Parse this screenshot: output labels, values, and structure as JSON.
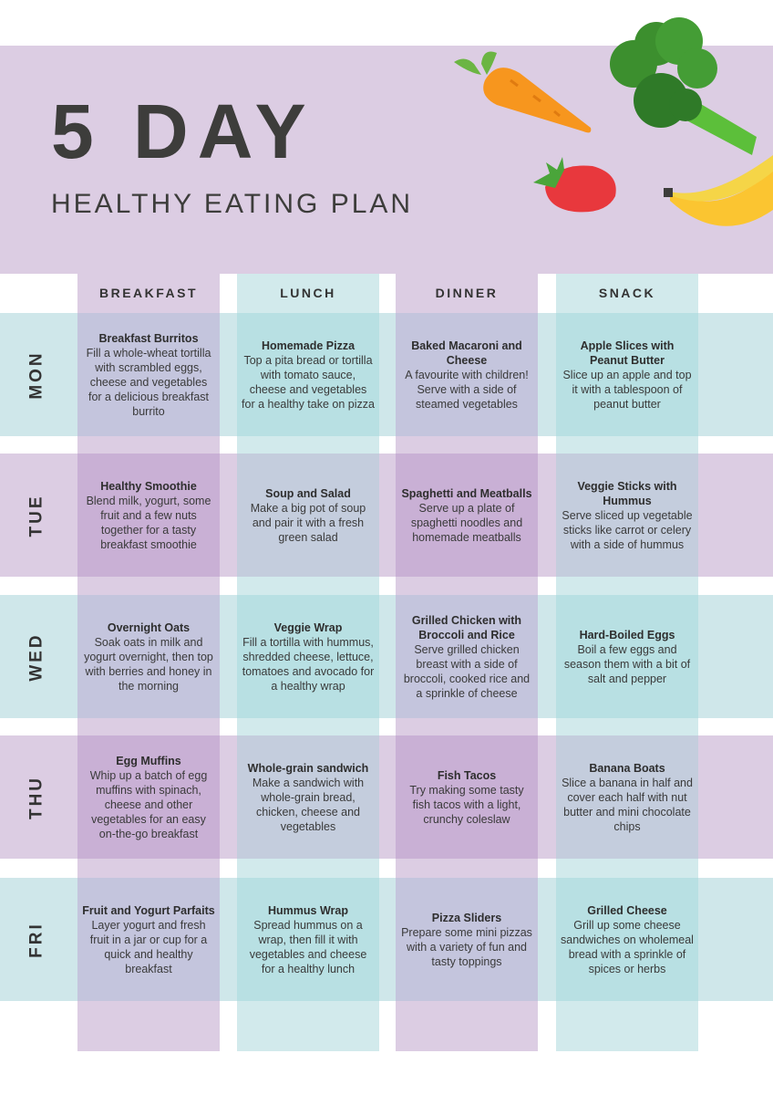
{
  "header": {
    "title": "5 DAY",
    "subtitle": "HEALTHY EATING PLAN"
  },
  "columns": [
    "BREAKFAST",
    "LUNCH",
    "DINNER",
    "SNACK"
  ],
  "rows": [
    {
      "day": "MON",
      "meals": [
        {
          "title": "Breakfast Burritos",
          "text": "Fill a whole-wheat tortilla with scrambled eggs, cheese and vegetables for a delicious breakfast burrito"
        },
        {
          "title": "Homemade Pizza",
          "text": "Top a pita bread or tortilla with tomato sauce, cheese and vegetables for a healthy take on pizza"
        },
        {
          "title": "Baked Macaroni and Cheese",
          "text": "A favourite with children! Serve with a side of steamed vegetables"
        },
        {
          "title": "Apple Slices with Peanut Butter",
          "text": "Slice up an apple and top it with a tablespoon of peanut butter"
        }
      ]
    },
    {
      "day": "TUE",
      "meals": [
        {
          "title": "Healthy Smoothie",
          "text": "Blend milk, yogurt, some fruit and a few nuts together for a tasty breakfast smoothie"
        },
        {
          "title": "Soup and Salad",
          "text": "Make a big pot of soup and pair it with a fresh green salad"
        },
        {
          "title": "Spaghetti and Meatballs",
          "text": "Serve up a plate of spaghetti noodles and homemade meatballs"
        },
        {
          "title": "Veggie Sticks with Hummus",
          "text": "Serve sliced up vegetable sticks like carrot or celery with a side of hummus"
        }
      ]
    },
    {
      "day": "WED",
      "meals": [
        {
          "title": "Overnight Oats",
          "text": "Soak oats in milk and yogurt overnight, then top with berries and honey in the morning"
        },
        {
          "title": "Veggie Wrap",
          "text": "Fill a tortilla with hummus, shredded cheese, lettuce, tomatoes and avocado for a healthy wrap"
        },
        {
          "title": "Grilled Chicken with Broccoli and Rice",
          "text": "Serve grilled chicken breast with a side of broccoli, cooked rice and a sprinkle of cheese"
        },
        {
          "title": "Hard-Boiled Eggs",
          "text": "Boil a few eggs and season them with a bit of salt and pepper"
        }
      ]
    },
    {
      "day": "THU",
      "meals": [
        {
          "title": "Egg Muffins",
          "text": "Whip up a batch of egg muffins with spinach, cheese and other vegetables for an easy on-the-go breakfast"
        },
        {
          "title": "Whole-grain sandwich",
          "text": "Make a sandwich with whole-grain bread, chicken, cheese and vegetables"
        },
        {
          "title": "Fish Tacos",
          "text": "Try making some tasty fish tacos with a light, crunchy coleslaw"
        },
        {
          "title": "Banana Boats",
          "text": "Slice a banana in half and cover each half with nut butter and mini chocolate chips"
        }
      ]
    },
    {
      "day": "FRI",
      "meals": [
        {
          "title": "Fruit and Yogurt Parfaits",
          "text": "Layer yogurt and fresh fruit in a jar or cup for a quick and healthy breakfast"
        },
        {
          "title": "Hummus Wrap",
          "text": "Spread hummus on a wrap, then fill it with vegetables and cheese for a healthy lunch"
        },
        {
          "title": "Pizza Sliders",
          "text": "Prepare some mini pizzas with a variety of fun and tasty toppings"
        },
        {
          "title": "Grilled Cheese",
          "text": "Grill up some cheese sandwiches on wholemeal bread with a sprinkle of spices or herbs"
        }
      ]
    }
  ]
}
